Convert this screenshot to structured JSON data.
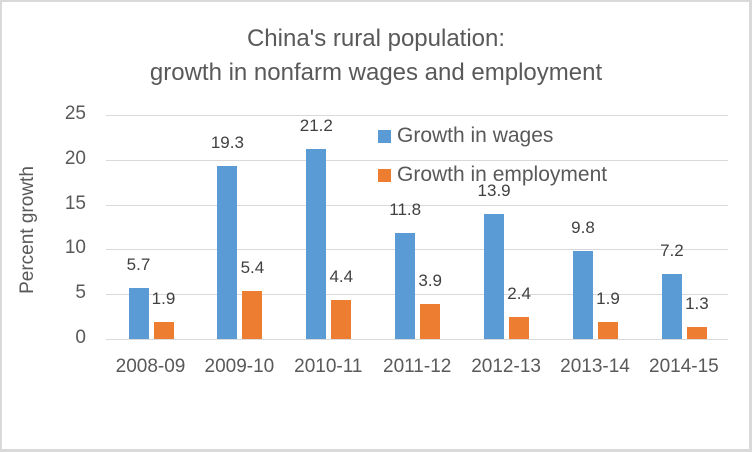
{
  "chart_data": {
    "type": "bar",
    "title": "China's rural population: growth in nonfarm wages and employment",
    "title_lines": [
      "China's rural population:",
      "growth in nonfarm wages and employment"
    ],
    "xlabel": "",
    "ylabel": "Percent growth",
    "ylim": [
      0,
      25
    ],
    "yticks": [
      0,
      5,
      10,
      15,
      20,
      25
    ],
    "grid": true,
    "legend_position": "top-right inside plot",
    "categories": [
      "2008-09",
      "2009-10",
      "2010-11",
      "2011-12",
      "2012-13",
      "2013-14",
      "2014-15"
    ],
    "series": [
      {
        "name": "Growth in wages",
        "color": "#5b9bd5",
        "values": [
          5.7,
          19.3,
          21.2,
          11.8,
          13.9,
          9.8,
          7.2
        ]
      },
      {
        "name": "Growth in employment",
        "color": "#ed7d31",
        "values": [
          1.9,
          5.4,
          4.4,
          3.9,
          2.4,
          1.9,
          1.3
        ]
      }
    ]
  }
}
